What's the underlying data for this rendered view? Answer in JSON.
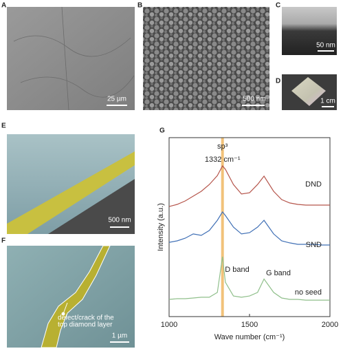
{
  "panels": [
    {
      "letter": "A",
      "scale_bar": "25 µm"
    },
    {
      "letter": "B",
      "scale_bar": "500 nm"
    },
    {
      "letter": "C",
      "scale_bar": "50 nm"
    },
    {
      "letter": "D",
      "scale_bar": "1 cm"
    },
    {
      "letter": "E",
      "scale_bar": "500 nm"
    },
    {
      "letter": "F",
      "scale_bar": "1 µm",
      "annotation": [
        "defect/crack of the",
        "top diamond layer"
      ]
    }
  ],
  "chart_data": {
    "type": "line",
    "panel_label": "G",
    "xlabel": "Wave number (cm⁻¹)",
    "ylabel": "Intensity (a.u.)",
    "x": [
      1000,
      1050,
      1100,
      1150,
      1200,
      1250,
      1300,
      1332,
      1350,
      1400,
      1450,
      1500,
      1550,
      1590,
      1650,
      1700,
      1750,
      1800,
      1850,
      1900,
      1950,
      2000
    ],
    "series": [
      {
        "name": "DND",
        "color": "#b5544a",
        "values": [
          6.15,
          6.27,
          6.46,
          6.73,
          7.0,
          7.38,
          7.88,
          8.42,
          8.23,
          7.38,
          6.85,
          6.92,
          7.38,
          7.85,
          7.0,
          6.54,
          6.35,
          6.27,
          6.23,
          6.23,
          6.23,
          6.23
        ]
      },
      {
        "name": "SND",
        "color": "#3f6fb5",
        "values": [
          4.15,
          4.23,
          4.38,
          4.62,
          4.54,
          4.81,
          5.38,
          5.85,
          5.65,
          5.0,
          4.62,
          4.69,
          5.0,
          5.38,
          4.62,
          4.23,
          4.12,
          4.04,
          4.04,
          4.04,
          4.0,
          4.0
        ]
      },
      {
        "name": "no seed",
        "color": "#8fbf8a",
        "values": [
          0.96,
          1.0,
          1.0,
          1.04,
          1.08,
          1.08,
          1.35,
          3.35,
          1.92,
          1.15,
          1.08,
          1.15,
          1.35,
          2.1,
          1.35,
          1.04,
          0.96,
          0.96,
          0.92,
          0.92,
          0.92,
          0.92
        ]
      }
    ],
    "xlim": [
      1000,
      2000
    ],
    "xticks": [
      1000,
      1500,
      2000
    ],
    "ylim": [
      0,
      10
    ],
    "highlight_x": 1332,
    "highlight_color": "#f2c27a",
    "annotations": [
      "sp³",
      "1332 cm⁻¹",
      "D band",
      "G band"
    ]
  }
}
